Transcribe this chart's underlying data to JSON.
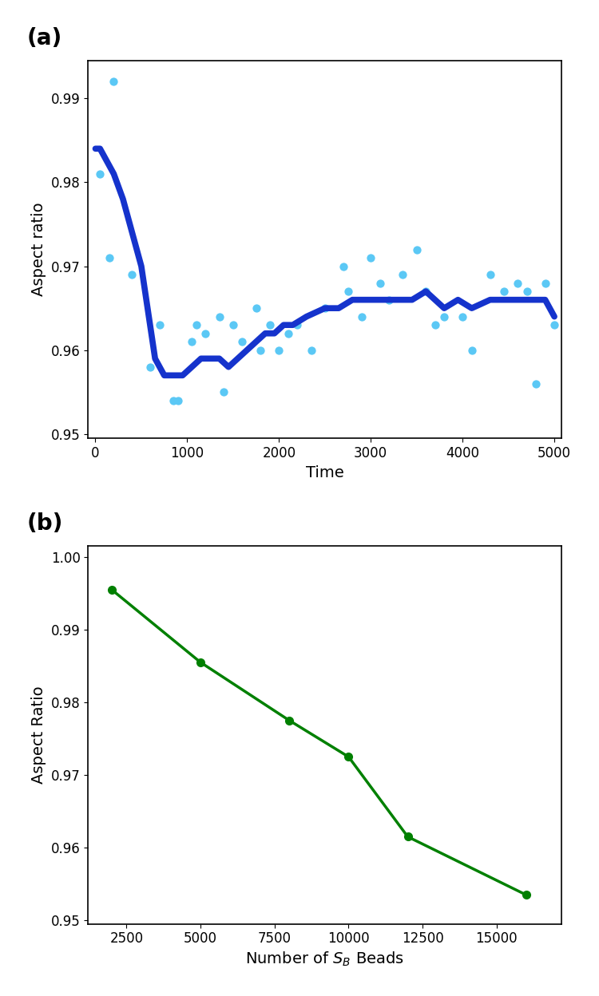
{
  "panel_a": {
    "scatter_x": [
      200,
      50,
      150,
      400,
      600,
      700,
      850,
      900,
      1050,
      1100,
      1200,
      1350,
      1400,
      1500,
      1600,
      1750,
      1800,
      1900,
      2000,
      2100,
      2200,
      2350,
      2500,
      2700,
      2750,
      2900,
      3000,
      3100,
      3200,
      3350,
      3500,
      3600,
      3700,
      3800,
      4000,
      4100,
      4300,
      4450,
      4600,
      4700,
      4800,
      4900,
      5000
    ],
    "scatter_y": [
      0.992,
      0.981,
      0.971,
      0.969,
      0.958,
      0.963,
      0.954,
      0.954,
      0.961,
      0.963,
      0.962,
      0.964,
      0.955,
      0.963,
      0.961,
      0.965,
      0.96,
      0.963,
      0.96,
      0.962,
      0.963,
      0.96,
      0.965,
      0.97,
      0.967,
      0.964,
      0.971,
      0.968,
      0.966,
      0.969,
      0.972,
      0.967,
      0.963,
      0.964,
      0.964,
      0.96,
      0.969,
      0.967,
      0.968,
      0.967,
      0.956,
      0.968,
      0.963
    ],
    "line_x": [
      0,
      50,
      100,
      200,
      300,
      500,
      650,
      750,
      850,
      950,
      1050,
      1150,
      1250,
      1350,
      1450,
      1550,
      1650,
      1750,
      1850,
      1950,
      2050,
      2150,
      2300,
      2500,
      2650,
      2800,
      2900,
      3000,
      3100,
      3200,
      3350,
      3450,
      3600,
      3700,
      3800,
      3950,
      4100,
      4300,
      4450,
      4600,
      4700,
      4800,
      4900,
      5000
    ],
    "line_y": [
      0.984,
      0.984,
      0.983,
      0.981,
      0.978,
      0.97,
      0.959,
      0.957,
      0.957,
      0.957,
      0.958,
      0.959,
      0.959,
      0.959,
      0.958,
      0.959,
      0.96,
      0.961,
      0.962,
      0.962,
      0.963,
      0.963,
      0.964,
      0.965,
      0.965,
      0.966,
      0.966,
      0.966,
      0.966,
      0.966,
      0.966,
      0.966,
      0.967,
      0.966,
      0.965,
      0.966,
      0.965,
      0.966,
      0.966,
      0.966,
      0.966,
      0.966,
      0.966,
      0.964
    ],
    "scatter_color": "#5bc8f5",
    "line_color": "#1533cc",
    "xlabel": "Time",
    "ylabel": "Aspect ratio",
    "xlim": [
      -80,
      5080
    ],
    "ylim": [
      0.9495,
      0.9945
    ],
    "yticks": [
      0.95,
      0.96,
      0.97,
      0.98,
      0.99
    ],
    "xticks": [
      0,
      1000,
      2000,
      3000,
      4000,
      5000
    ],
    "label": "(a)",
    "line_width": 5.5,
    "scatter_size": 55
  },
  "panel_b": {
    "x": [
      2000,
      5000,
      8000,
      10000,
      12000,
      16000
    ],
    "y": [
      0.9955,
      0.9855,
      0.9775,
      0.9725,
      0.9615,
      0.9535
    ],
    "line_color": "#008000",
    "marker_color": "#008000",
    "xlabel": "Number of $S_B$ Beads",
    "ylabel": "Aspect Ratio",
    "xlim": [
      1200,
      17200
    ],
    "ylim": [
      0.9495,
      1.0015
    ],
    "yticks": [
      0.95,
      0.96,
      0.97,
      0.98,
      0.99,
      1.0
    ],
    "xticks": [
      2500,
      5000,
      7500,
      10000,
      12500,
      15000
    ],
    "label": "(b)",
    "line_width": 2.5,
    "marker_size": 7
  },
  "fig_width": 7.5,
  "fig_height": 12.48,
  "dpi": 100
}
